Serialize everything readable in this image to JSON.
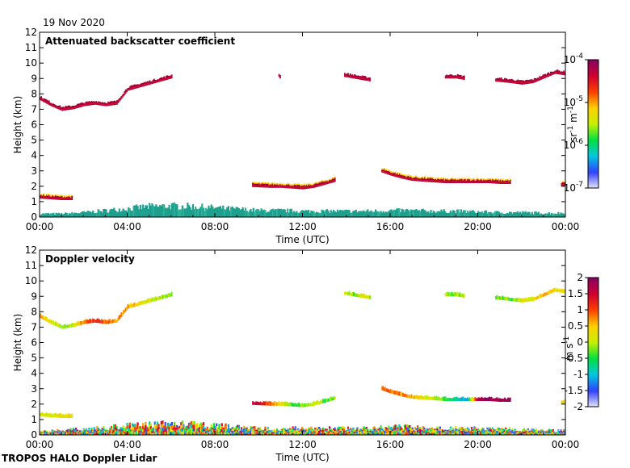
{
  "date": "19 Nov 2020",
  "footer": "TROPOS HALO Doppler Lidar",
  "colors": {
    "aerosol": "#1fa08f",
    "cloud_dark": "#a8003a",
    "cloud_mid": "#d81030",
    "cloud_edge": "#ffd000"
  },
  "chart_data": [
    {
      "type": "heatmap",
      "title": "Attenuated backscatter coefficient",
      "xlabel": "Time (UTC)",
      "ylabel": "Height (km)",
      "xlim": [
        0,
        24
      ],
      "ylim": [
        0,
        12
      ],
      "xticks": [
        0,
        4,
        8,
        12,
        16,
        20,
        24
      ],
      "xtick_labels": [
        "00:00",
        "04:00",
        "08:00",
        "12:00",
        "16:00",
        "20:00",
        "00:00"
      ],
      "yticks": [
        0,
        1,
        2,
        3,
        4,
        5,
        6,
        7,
        8,
        9,
        10,
        11,
        12
      ],
      "ytick_labels": [
        "0",
        "1",
        "2",
        "3",
        "4",
        "5",
        "6",
        "7",
        "8",
        "9",
        "10",
        "11",
        "12"
      ],
      "colorbar": {
        "label": "sr-1 m-1",
        "label_parts": [
          "sr",
          "-1",
          " m",
          "-1"
        ],
        "scale": "log",
        "range": [
          1e-07,
          0.0001
        ],
        "ticks": [
          {
            "base": "10",
            "exp": "-4",
            "value": 0.0001
          },
          {
            "base": "10",
            "exp": "-5",
            "value": 1e-05
          },
          {
            "base": "10",
            "exp": "-6",
            "value": 1e-06
          },
          {
            "base": "10",
            "exp": "-7",
            "value": 1e-07
          }
        ],
        "palette": [
          "#e8e8f8",
          "#3040ff",
          "#00c8e0",
          "#00e040",
          "#c8f000",
          "#ffd000",
          "#ff4000",
          "#d00030",
          "#880060"
        ]
      },
      "layers": [
        {
          "name": "upper-cloud-1",
          "x": [
            0,
            0.5,
            1.0,
            1.5,
            2.0,
            2.5,
            3.0,
            3.5,
            4.0,
            4.5,
            5.0,
            5.5,
            6.0
          ],
          "y": [
            7.6,
            7.2,
            6.9,
            7.0,
            7.2,
            7.3,
            7.2,
            7.3,
            8.2,
            8.4,
            8.6,
            8.8,
            9.0
          ]
        },
        {
          "name": "upper-cloud-2",
          "x": [
            10.9,
            11.0
          ],
          "y": [
            9.1,
            8.9
          ]
        },
        {
          "name": "upper-cloud-3",
          "x": [
            13.9,
            14.3,
            14.7,
            15.1
          ],
          "y": [
            9.1,
            9.0,
            8.9,
            8.8
          ]
        },
        {
          "name": "upper-cloud-4",
          "x": [
            18.5,
            19.0,
            19.4
          ],
          "y": [
            9.0,
            9.0,
            8.9
          ]
        },
        {
          "name": "upper-cloud-5",
          "x": [
            20.8,
            21.5,
            22.0,
            22.5,
            23.0,
            23.5,
            24.0
          ],
          "y": [
            8.8,
            8.7,
            8.6,
            8.7,
            9.0,
            9.3,
            9.2
          ]
        },
        {
          "name": "low-cloud-1",
          "x": [
            0,
            0.5,
            1.0,
            1.5
          ],
          "y": [
            1.2,
            1.15,
            1.1,
            1.1
          ]
        },
        {
          "name": "low-cloud-2",
          "x": [
            9.7,
            10.5,
            11.0,
            11.5,
            12.0,
            12.5,
            13.0,
            13.5
          ],
          "y": [
            1.95,
            1.9,
            1.9,
            1.85,
            1.8,
            1.9,
            2.1,
            2.3
          ]
        },
        {
          "name": "low-cloud-3",
          "x": [
            15.6,
            16.0,
            16.5,
            17.0,
            17.5,
            18.0,
            18.5,
            19.0,
            19.5,
            20.0,
            20.5,
            21.0,
            21.5
          ],
          "y": [
            2.9,
            2.7,
            2.5,
            2.35,
            2.3,
            2.25,
            2.2,
            2.2,
            2.2,
            2.2,
            2.2,
            2.15,
            2.15
          ]
        },
        {
          "name": "low-cloud-4",
          "x": [
            23.8,
            24.0
          ],
          "y": [
            2.0,
            2.0
          ]
        }
      ],
      "boundary_layer": {
        "x": [
          0,
          1,
          2,
          3,
          4,
          5,
          6,
          7,
          8,
          9,
          10,
          11,
          12,
          13,
          14,
          15,
          16,
          17,
          18,
          19,
          20,
          21,
          22,
          23,
          24
        ],
        "top": [
          0.25,
          0.25,
          0.35,
          0.5,
          0.65,
          0.8,
          0.85,
          0.8,
          0.7,
          0.6,
          0.5,
          0.5,
          0.45,
          0.45,
          0.45,
          0.45,
          0.5,
          0.5,
          0.45,
          0.45,
          0.4,
          0.35,
          0.35,
          0.3,
          0.3
        ]
      }
    },
    {
      "type": "heatmap",
      "title": "Doppler velocity",
      "xlabel": "Time (UTC)",
      "ylabel": "Height (km)",
      "xlim": [
        0,
        24
      ],
      "ylim": [
        0,
        12
      ],
      "xticks": [
        0,
        4,
        8,
        12,
        16,
        20,
        24
      ],
      "xtick_labels": [
        "00:00",
        "04:00",
        "08:00",
        "12:00",
        "16:00",
        "20:00",
        "00:00"
      ],
      "yticks": [
        0,
        1,
        2,
        3,
        4,
        5,
        6,
        7,
        8,
        9,
        10,
        11,
        12
      ],
      "ytick_labels": [
        "0",
        "1",
        "2",
        "3",
        "4",
        "5",
        "6",
        "7",
        "8",
        "9",
        "10",
        "11",
        "12"
      ],
      "colorbar": {
        "label": "m s-1",
        "label_parts": [
          "m s",
          "-1"
        ],
        "scale": "linear",
        "range": [
          -2,
          2
        ],
        "ticks": [
          {
            "text": "2",
            "value": 2
          },
          {
            "text": "1.5",
            "value": 1.5
          },
          {
            "text": "1",
            "value": 1
          },
          {
            "text": "0.5",
            "value": 0.5
          },
          {
            "text": "0",
            "value": 0
          },
          {
            "text": "-0.5",
            "value": -0.5
          },
          {
            "text": "-1",
            "value": -1
          },
          {
            "text": "-1.5",
            "value": -1.5
          },
          {
            "text": "-2",
            "value": -2
          }
        ],
        "palette": [
          "#e8e8f8",
          "#3040ff",
          "#00c8e0",
          "#00e040",
          "#c8f000",
          "#ffd000",
          "#ff4000",
          "#d00030",
          "#880060"
        ]
      },
      "layers": [
        {
          "name": "upper-cloud-1",
          "x": [
            0,
            0.5,
            1.0,
            1.5,
            2.0,
            2.5,
            3.0,
            3.5,
            4.0,
            4.5,
            5.0,
            5.5,
            6.0
          ],
          "y": [
            7.6,
            7.2,
            6.9,
            7.0,
            7.2,
            7.3,
            7.2,
            7.3,
            8.2,
            8.4,
            8.6,
            8.8,
            9.0
          ],
          "v": [
            0.6,
            0.2,
            -0.2,
            0.1,
            0.8,
            1.2,
            0.9,
            0.7,
            0.6,
            0.3,
            0.1,
            -0.1,
            -0.3
          ]
        },
        {
          "name": "upper-cloud-3",
          "x": [
            13.9,
            14.3,
            14.7,
            15.1
          ],
          "y": [
            9.1,
            9.0,
            8.9,
            8.8
          ],
          "v": [
            0.1,
            -0.2,
            0.2,
            0.0
          ]
        },
        {
          "name": "upper-cloud-4",
          "x": [
            18.5,
            19.0,
            19.4
          ],
          "y": [
            9.0,
            9.0,
            8.9
          ],
          "v": [
            -0.1,
            -0.2,
            0.0
          ]
        },
        {
          "name": "upper-cloud-5",
          "x": [
            20.8,
            21.5,
            22.0,
            22.5,
            23.0,
            23.5,
            24.0
          ],
          "y": [
            8.8,
            8.7,
            8.6,
            8.7,
            9.0,
            9.3,
            9.2
          ],
          "v": [
            -0.2,
            -0.3,
            0.1,
            0.3,
            0.6,
            0.4,
            0.2
          ]
        },
        {
          "name": "low-cloud-1",
          "x": [
            0,
            0.5,
            1.0,
            1.5
          ],
          "y": [
            1.2,
            1.15,
            1.1,
            1.1
          ],
          "v": [
            0.1,
            0.2,
            0.3,
            0.4
          ]
        },
        {
          "name": "low-cloud-2",
          "x": [
            9.7,
            10.5,
            11.0,
            11.5,
            12.0,
            12.5,
            13.0,
            13.5
          ],
          "y": [
            1.95,
            1.9,
            1.9,
            1.85,
            1.8,
            1.9,
            2.1,
            2.3
          ],
          "v": [
            1.6,
            1.0,
            0.2,
            -0.3,
            -0.2,
            0.1,
            -0.4,
            -0.2
          ]
        },
        {
          "name": "low-cloud-3",
          "x": [
            15.6,
            16.0,
            16.5,
            17.0,
            17.5,
            18.0,
            18.5,
            19.0,
            19.5,
            20.0,
            20.5,
            21.0,
            21.5
          ],
          "y": [
            2.9,
            2.7,
            2.5,
            2.35,
            2.3,
            2.25,
            2.2,
            2.2,
            2.2,
            2.2,
            2.2,
            2.15,
            2.15
          ],
          "v": [
            0.9,
            0.8,
            0.7,
            0.5,
            0.3,
            0.0,
            -0.4,
            -0.8,
            -1.0,
            1.8,
            1.9,
            1.8,
            1.8
          ]
        },
        {
          "name": "low-cloud-4",
          "x": [
            23.8,
            24.0
          ],
          "y": [
            2.0,
            2.0
          ],
          "v": [
            0.3,
            0.3
          ]
        }
      ],
      "boundary_layer": {
        "x": [
          0,
          1,
          2,
          3,
          4,
          5,
          6,
          7,
          8,
          9,
          10,
          11,
          12,
          13,
          14,
          15,
          16,
          17,
          18,
          19,
          20,
          21,
          22,
          23,
          24
        ],
        "top": [
          0.25,
          0.35,
          0.45,
          0.55,
          0.7,
          0.8,
          0.85,
          0.8,
          0.7,
          0.6,
          0.5,
          0.5,
          0.5,
          0.5,
          0.5,
          0.5,
          0.6,
          0.6,
          0.5,
          0.5,
          0.5,
          0.45,
          0.4,
          0.35,
          0.35
        ]
      }
    }
  ]
}
